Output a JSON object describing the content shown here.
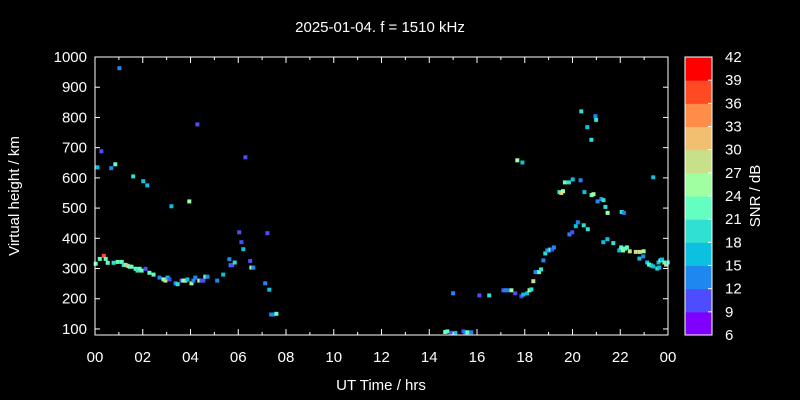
{
  "chart_data": {
    "type": "scatter",
    "title": "2025-01-04. f = 1510 kHz",
    "xlabel": "UT Time / hrs",
    "ylabel": "Virtual height / km",
    "xlim": [
      0,
      24
    ],
    "ylim": [
      80,
      1000
    ],
    "xticks": [
      "00",
      "02",
      "04",
      "06",
      "08",
      "10",
      "12",
      "14",
      "16",
      "18",
      "20",
      "22",
      "00"
    ],
    "yticks": [
      "100",
      "200",
      "300",
      "400",
      "500",
      "600",
      "700",
      "800",
      "900",
      "1000"
    ],
    "grid": false,
    "colorbar": {
      "label": "SNR / dB",
      "range": [
        6,
        42
      ],
      "ticks": [
        "6",
        "9",
        "12",
        "15",
        "18",
        "21",
        "24",
        "27",
        "30",
        "33",
        "36",
        "39",
        "42"
      ],
      "colors": [
        "#8000ff",
        "#4d4dff",
        "#1e88f0",
        "#0cc0e0",
        "#30e0d0",
        "#64ffc0",
        "#a0ffa0",
        "#c8e08a",
        "#f0c070",
        "#ff8c48",
        "#ff4a24",
        "#ff0000"
      ]
    },
    "points_columns": [
      "time_hrs",
      "height_km",
      "snr_db"
    ],
    "points": [
      [
        1.02,
        963,
        13
      ],
      [
        4.29,
        777,
        10
      ],
      [
        0.27,
        688,
        10
      ],
      [
        0.1,
        635,
        16
      ],
      [
        0.68,
        632,
        13
      ],
      [
        0.85,
        645,
        22
      ],
      [
        1.6,
        605,
        19
      ],
      [
        2.02,
        589,
        16
      ],
      [
        2.19,
        575,
        16
      ],
      [
        3.2,
        506,
        16
      ],
      [
        3.95,
        522,
        25
      ],
      [
        6.3,
        668,
        10
      ],
      [
        6.04,
        420,
        10
      ],
      [
        6.13,
        387,
        10
      ],
      [
        6.21,
        364,
        16
      ],
      [
        5.63,
        331,
        13
      ],
      [
        5.68,
        311,
        13
      ],
      [
        5.75,
        311,
        10
      ],
      [
        5.85,
        320,
        19
      ],
      [
        6.5,
        325,
        10
      ],
      [
        6.55,
        303,
        25
      ],
      [
        6.63,
        303,
        13
      ],
      [
        7.22,
        417,
        10
      ],
      [
        7.13,
        251,
        13
      ],
      [
        7.3,
        230,
        16
      ],
      [
        7.38,
        148,
        13
      ],
      [
        7.45,
        148,
        13
      ],
      [
        7.6,
        150,
        22
      ],
      [
        0.03,
        316,
        22
      ],
      [
        0.2,
        332,
        22
      ],
      [
        0.37,
        342,
        38
      ],
      [
        0.45,
        332,
        22
      ],
      [
        0.53,
        319,
        22
      ],
      [
        0.78,
        319,
        19
      ],
      [
        0.95,
        322,
        22
      ],
      [
        1.12,
        322,
        22
      ],
      [
        1.2,
        312,
        19
      ],
      [
        1.28,
        312,
        22
      ],
      [
        1.37,
        309,
        31
      ],
      [
        1.45,
        306,
        22
      ],
      [
        1.53,
        306,
        22
      ],
      [
        1.7,
        299,
        22
      ],
      [
        1.78,
        293,
        19
      ],
      [
        1.87,
        299,
        22
      ],
      [
        1.95,
        293,
        22
      ],
      [
        2.12,
        299,
        10
      ],
      [
        2.28,
        286,
        22
      ],
      [
        2.45,
        280,
        22
      ],
      [
        2.7,
        270,
        13
      ],
      [
        2.87,
        264,
        25
      ],
      [
        2.95,
        260,
        28
      ],
      [
        3.04,
        270,
        16
      ],
      [
        3.12,
        264,
        10
      ],
      [
        3.37,
        251,
        13
      ],
      [
        3.46,
        248,
        19
      ],
      [
        3.62,
        260,
        10
      ],
      [
        3.7,
        260,
        25
      ],
      [
        3.79,
        260,
        25
      ],
      [
        3.87,
        264,
        16
      ],
      [
        4.04,
        251,
        25
      ],
      [
        4.12,
        260,
        13
      ],
      [
        4.2,
        270,
        13
      ],
      [
        4.37,
        260,
        25
      ],
      [
        4.46,
        260,
        10
      ],
      [
        4.54,
        260,
        10
      ],
      [
        4.62,
        273,
        22
      ],
      [
        4.71,
        273,
        13
      ],
      [
        5.12,
        260,
        13
      ],
      [
        5.37,
        280,
        16
      ],
      [
        14.67,
        90,
        21
      ],
      [
        14.76,
        92,
        22
      ],
      [
        14.92,
        87,
        10
      ],
      [
        15.09,
        87,
        16
      ],
      [
        15.0,
        218,
        13
      ],
      [
        15.43,
        92,
        10
      ],
      [
        15.51,
        89,
        13
      ],
      [
        15.6,
        89,
        22
      ],
      [
        15.76,
        89,
        13
      ],
      [
        16.1,
        211,
        10
      ],
      [
        16.51,
        211,
        19
      ],
      [
        17.1,
        228,
        10
      ],
      [
        17.18,
        228,
        13
      ],
      [
        17.27,
        228,
        13
      ],
      [
        17.44,
        228,
        25
      ],
      [
        17.6,
        218,
        10
      ],
      [
        17.86,
        208,
        10
      ],
      [
        17.94,
        214,
        16
      ],
      [
        18.1,
        218,
        16
      ],
      [
        18.2,
        228,
        25
      ],
      [
        18.28,
        231,
        19
      ],
      [
        18.36,
        258,
        27
      ],
      [
        18.45,
        288,
        13
      ],
      [
        18.6,
        288,
        22
      ],
      [
        18.68,
        297,
        19
      ],
      [
        18.78,
        327,
        13
      ],
      [
        18.86,
        350,
        19
      ],
      [
        18.94,
        360,
        13
      ],
      [
        19.02,
        360,
        16
      ],
      [
        19.07,
        363,
        19
      ],
      [
        19.1,
        363,
        22
      ],
      [
        19.15,
        363,
        10
      ],
      [
        19.22,
        370,
        13
      ],
      [
        19.87,
        413,
        13
      ],
      [
        19.99,
        420,
        10
      ],
      [
        20.14,
        440,
        16
      ],
      [
        20.22,
        453,
        13
      ],
      [
        20.47,
        443,
        19
      ],
      [
        20.64,
        430,
        19
      ],
      [
        21.29,
        387,
        16
      ],
      [
        21.46,
        397,
        16
      ],
      [
        21.71,
        384,
        19
      ],
      [
        21.96,
        360,
        16
      ],
      [
        22.04,
        370,
        21
      ],
      [
        22.12,
        360,
        24
      ],
      [
        22.2,
        366,
        21
      ],
      [
        22.28,
        370,
        21
      ],
      [
        22.4,
        357,
        27
      ],
      [
        22.65,
        355,
        27
      ],
      [
        22.82,
        355,
        27
      ],
      [
        22.98,
        357,
        24
      ],
      [
        22.8,
        333,
        16
      ],
      [
        22.96,
        340,
        13
      ],
      [
        23.13,
        320,
        16
      ],
      [
        23.21,
        313,
        22
      ],
      [
        23.3,
        310,
        19
      ],
      [
        23.38,
        307,
        16
      ],
      [
        23.55,
        300,
        19
      ],
      [
        23.63,
        303,
        16
      ],
      [
        23.6,
        320,
        16
      ],
      [
        23.68,
        327,
        22
      ],
      [
        23.75,
        330,
        16
      ],
      [
        23.85,
        320,
        22
      ],
      [
        23.92,
        313,
        27
      ],
      [
        23.99,
        320,
        19
      ],
      [
        20.37,
        820,
        19
      ],
      [
        20.96,
        804,
        13
      ],
      [
        20.99,
        792,
        19
      ],
      [
        20.62,
        768,
        16
      ],
      [
        20.79,
        726,
        19
      ],
      [
        17.69,
        658,
        25
      ],
      [
        17.9,
        651,
        16
      ],
      [
        19.45,
        553,
        19
      ],
      [
        19.53,
        550,
        32
      ],
      [
        19.6,
        556,
        25
      ],
      [
        19.68,
        585,
        22
      ],
      [
        19.85,
        585,
        19
      ],
      [
        20.01,
        595,
        16
      ],
      [
        20.34,
        592,
        13
      ],
      [
        20.5,
        553,
        16
      ],
      [
        20.8,
        543,
        22
      ],
      [
        20.88,
        546,
        25
      ],
      [
        21.05,
        522,
        13
      ],
      [
        21.21,
        530,
        13
      ],
      [
        21.3,
        526,
        19
      ],
      [
        21.38,
        504,
        19
      ],
      [
        21.47,
        484,
        25
      ],
      [
        22.06,
        487,
        19
      ],
      [
        22.15,
        484,
        13
      ],
      [
        23.38,
        602,
        16
      ]
    ]
  }
}
